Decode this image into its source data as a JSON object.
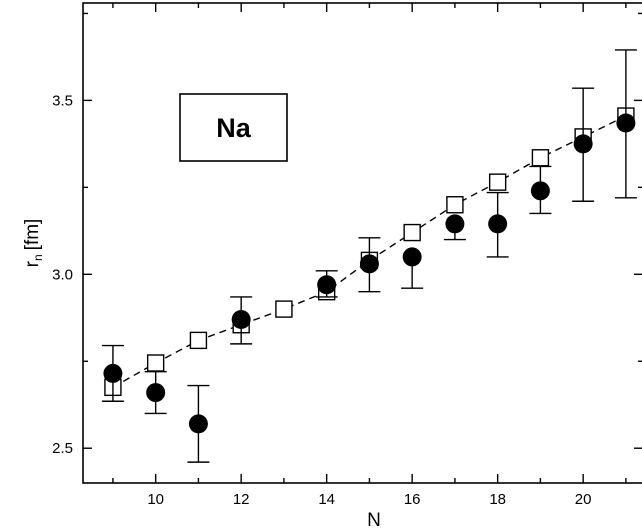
{
  "chart_data": {
    "type": "scatter",
    "annotation": "Na",
    "xlabel": "N",
    "ylabel_main": "r",
    "ylabel_sub": "n",
    "ylabel_unit": "[fm]",
    "xlim": [
      8.3,
      21.4
    ],
    "ylim": [
      2.4,
      3.78
    ],
    "x_ticks": [
      10,
      12,
      14,
      16,
      18,
      20
    ],
    "y_ticks": [
      2.5,
      3.0,
      3.5
    ],
    "y_tick_labels": [
      "2.5",
      "3.0",
      "3.5"
    ],
    "grid": false,
    "series": [
      {
        "marker": "filled-circle",
        "color": "#000000",
        "points": [
          {
            "x": 9,
            "y": 2.715,
            "err_lo": 2.635,
            "err_hi": 2.795
          },
          {
            "x": 10,
            "y": 2.66,
            "err_lo": 2.6,
            "err_hi": 2.72
          },
          {
            "x": 11,
            "y": 2.57,
            "err_lo": 2.46,
            "err_hi": 2.68
          },
          {
            "x": 12,
            "y": 2.87,
            "err_lo": 2.8,
            "err_hi": 2.935
          },
          {
            "x": 14,
            "y": 2.97,
            "err_lo": 2.935,
            "err_hi": 3.01
          },
          {
            "x": 15,
            "y": 3.03,
            "err_lo": 2.95,
            "err_hi": 3.105
          },
          {
            "x": 16,
            "y": 3.05,
            "err_lo": 2.96,
            "err_hi": null
          },
          {
            "x": 17,
            "y": 3.145,
            "err_lo": 3.1,
            "err_hi": null
          },
          {
            "x": 18,
            "y": 3.145,
            "err_lo": 3.05,
            "err_hi": 3.235
          },
          {
            "x": 19,
            "y": 3.24,
            "err_lo": 3.175,
            "err_hi": 3.31
          },
          {
            "x": 20,
            "y": 3.375,
            "err_lo": 3.21,
            "err_hi": 3.535
          },
          {
            "x": 21,
            "y": 3.435,
            "err_lo": 3.22,
            "err_hi": 3.645
          }
        ]
      },
      {
        "marker": "open-square",
        "color": "#000000",
        "line": "dashed",
        "points": [
          {
            "x": 9,
            "y": 2.675
          },
          {
            "x": 10,
            "y": 2.745
          },
          {
            "x": 11,
            "y": 2.81
          },
          {
            "x": 12,
            "y": 2.855
          },
          {
            "x": 13,
            "y": 2.9
          },
          {
            "x": 14,
            "y": 2.95
          },
          {
            "x": 15,
            "y": 3.04
          },
          {
            "x": 16,
            "y": 3.12
          },
          {
            "x": 17,
            "y": 3.2
          },
          {
            "x": 18,
            "y": 3.265
          },
          {
            "x": 19,
            "y": 3.335
          },
          {
            "x": 20,
            "y": 3.395
          },
          {
            "x": 21,
            "y": 3.455
          }
        ]
      }
    ]
  }
}
